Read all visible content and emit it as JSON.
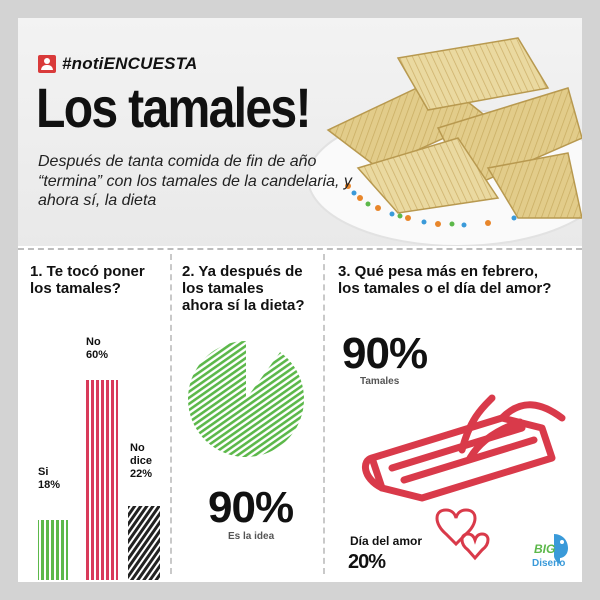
{
  "header": {
    "hashtag": "#notiENCUESTA",
    "title": "Los tamales!",
    "subtitle": "Después de tanta comida de fin de año “termina” con los tamales de la candelaria, y ahora sí, la dieta"
  },
  "q1": {
    "title_line1": "1. Te tocó poner",
    "title_line2": "los tamales?",
    "bars": [
      {
        "label": "Si",
        "value_label": "18%",
        "value": 18,
        "color": "#5cb84a"
      },
      {
        "label": "No",
        "value_label": "60%",
        "value": 60,
        "color": "#d93a5a"
      },
      {
        "label_line1": "No",
        "label_line2": "dice",
        "value_label": "22%",
        "value": 22,
        "color": "#222222"
      }
    ]
  },
  "q2": {
    "title_line1": "2. Ya después de",
    "title_line2": "los tamales",
    "title_line3": "ahora sí la dieta?",
    "percent": "90%",
    "value": 90,
    "caption": "Es la idea",
    "color": "#5cb84a"
  },
  "q3": {
    "title_line1": "3. Qué pesa más en febrero,",
    "title_line2": "los tamales o el día del amor?",
    "tamales_percent": "90%",
    "tamales_label": "Tamales",
    "amor_label": "Día del amor",
    "amor_percent": "20%",
    "accent": "#d93a4a"
  },
  "logo": {
    "word": "BIG",
    "sub": "Diseno"
  }
}
